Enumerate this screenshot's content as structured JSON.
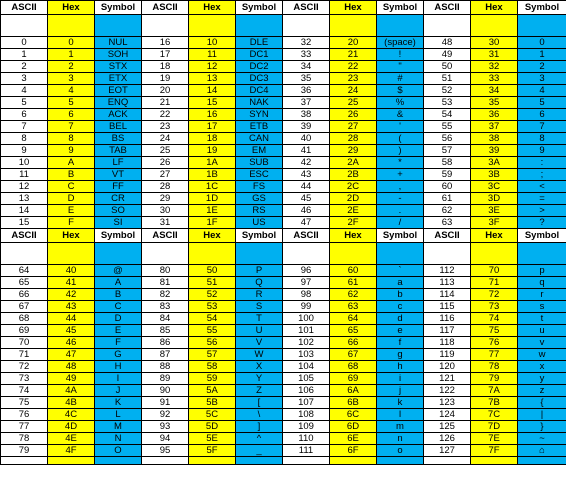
{
  "headers": {
    "ascii": "ASCII",
    "hex": "Hex",
    "symbol": "Symbol"
  },
  "top": [
    [
      [
        "0",
        "0",
        "NUL"
      ],
      [
        "16",
        "10",
        "DLE"
      ],
      [
        "32",
        "20",
        "(space)"
      ],
      [
        "48",
        "30",
        "0"
      ]
    ],
    [
      [
        "1",
        "1",
        "SOH"
      ],
      [
        "17",
        "11",
        "DC1"
      ],
      [
        "33",
        "21",
        "!"
      ],
      [
        "49",
        "31",
        "1"
      ]
    ],
    [
      [
        "2",
        "2",
        "STX"
      ],
      [
        "18",
        "12",
        "DC2"
      ],
      [
        "34",
        "22",
        "\""
      ],
      [
        "50",
        "32",
        "2"
      ]
    ],
    [
      [
        "3",
        "3",
        "ETX"
      ],
      [
        "19",
        "13",
        "DC3"
      ],
      [
        "35",
        "23",
        "#"
      ],
      [
        "51",
        "33",
        "3"
      ]
    ],
    [
      [
        "4",
        "4",
        "EOT"
      ],
      [
        "20",
        "14",
        "DC4"
      ],
      [
        "36",
        "24",
        "$"
      ],
      [
        "52",
        "34",
        "4"
      ]
    ],
    [
      [
        "5",
        "5",
        "ENQ"
      ],
      [
        "21",
        "15",
        "NAK"
      ],
      [
        "37",
        "25",
        "%"
      ],
      [
        "53",
        "35",
        "5"
      ]
    ],
    [
      [
        "6",
        "6",
        "ACK"
      ],
      [
        "22",
        "16",
        "SYN"
      ],
      [
        "38",
        "26",
        "&"
      ],
      [
        "54",
        "36",
        "6"
      ]
    ],
    [
      [
        "7",
        "7",
        "BEL"
      ],
      [
        "23",
        "17",
        "ETB"
      ],
      [
        "39",
        "27",
        "'"
      ],
      [
        "55",
        "37",
        "7"
      ]
    ],
    [
      [
        "8",
        "8",
        "BS"
      ],
      [
        "24",
        "18",
        "CAN"
      ],
      [
        "40",
        "28",
        "("
      ],
      [
        "56",
        "38",
        "8"
      ]
    ],
    [
      [
        "9",
        "9",
        "TAB"
      ],
      [
        "25",
        "19",
        "EM"
      ],
      [
        "41",
        "29",
        ")"
      ],
      [
        "57",
        "39",
        "9"
      ]
    ],
    [
      [
        "10",
        "A",
        "LF"
      ],
      [
        "26",
        "1A",
        "SUB"
      ],
      [
        "42",
        "2A",
        "*"
      ],
      [
        "58",
        "3A",
        ":"
      ]
    ],
    [
      [
        "11",
        "B",
        "VT"
      ],
      [
        "27",
        "1B",
        "ESC"
      ],
      [
        "43",
        "2B",
        "+"
      ],
      [
        "59",
        "3B",
        ";"
      ]
    ],
    [
      [
        "12",
        "C",
        "FF"
      ],
      [
        "28",
        "1C",
        "FS"
      ],
      [
        "44",
        "2C",
        ","
      ],
      [
        "60",
        "3C",
        "<"
      ]
    ],
    [
      [
        "13",
        "D",
        "CR"
      ],
      [
        "29",
        "1D",
        "GS"
      ],
      [
        "45",
        "2D",
        "-"
      ],
      [
        "61",
        "3D",
        "="
      ]
    ],
    [
      [
        "14",
        "E",
        "SO"
      ],
      [
        "30",
        "1E",
        "RS"
      ],
      [
        "46",
        "2E",
        "."
      ],
      [
        "62",
        "3E",
        ">"
      ]
    ],
    [
      [
        "15",
        "F",
        "SI"
      ],
      [
        "31",
        "1F",
        "US"
      ],
      [
        "47",
        "2F",
        "/"
      ],
      [
        "63",
        "3F",
        "?"
      ]
    ]
  ],
  "bottom": [
    [
      [
        "64",
        "40",
        "@"
      ],
      [
        "80",
        "50",
        "P"
      ],
      [
        "96",
        "60",
        "`"
      ],
      [
        "112",
        "70",
        "p"
      ]
    ],
    [
      [
        "65",
        "41",
        "A"
      ],
      [
        "81",
        "51",
        "Q"
      ],
      [
        "97",
        "61",
        "a"
      ],
      [
        "113",
        "71",
        "q"
      ]
    ],
    [
      [
        "66",
        "42",
        "B"
      ],
      [
        "82",
        "52",
        "R"
      ],
      [
        "98",
        "62",
        "b"
      ],
      [
        "114",
        "72",
        "r"
      ]
    ],
    [
      [
        "67",
        "43",
        "C"
      ],
      [
        "83",
        "53",
        "S"
      ],
      [
        "99",
        "63",
        "c"
      ],
      [
        "115",
        "73",
        "s"
      ]
    ],
    [
      [
        "68",
        "44",
        "D"
      ],
      [
        "84",
        "54",
        "T"
      ],
      [
        "100",
        "64",
        "d"
      ],
      [
        "116",
        "74",
        "t"
      ]
    ],
    [
      [
        "69",
        "45",
        "E"
      ],
      [
        "85",
        "55",
        "U"
      ],
      [
        "101",
        "65",
        "e"
      ],
      [
        "117",
        "75",
        "u"
      ]
    ],
    [
      [
        "70",
        "46",
        "F"
      ],
      [
        "86",
        "56",
        "V"
      ],
      [
        "102",
        "66",
        "f"
      ],
      [
        "118",
        "76",
        "v"
      ]
    ],
    [
      [
        "71",
        "47",
        "G"
      ],
      [
        "87",
        "57",
        "W"
      ],
      [
        "103",
        "67",
        "g"
      ],
      [
        "119",
        "77",
        "w"
      ]
    ],
    [
      [
        "72",
        "48",
        "H"
      ],
      [
        "88",
        "58",
        "X"
      ],
      [
        "104",
        "68",
        "h"
      ],
      [
        "120",
        "78",
        "x"
      ]
    ],
    [
      [
        "73",
        "49",
        "I"
      ],
      [
        "89",
        "59",
        "Y"
      ],
      [
        "105",
        "69",
        "i"
      ],
      [
        "121",
        "79",
        "y"
      ]
    ],
    [
      [
        "74",
        "4A",
        "J"
      ],
      [
        "90",
        "5A",
        "Z"
      ],
      [
        "106",
        "6A",
        "j"
      ],
      [
        "122",
        "7A",
        "z"
      ]
    ],
    [
      [
        "75",
        "4B",
        "K"
      ],
      [
        "91",
        "5B",
        "["
      ],
      [
        "107",
        "6B",
        "k"
      ],
      [
        "123",
        "7B",
        "{"
      ]
    ],
    [
      [
        "76",
        "4C",
        "L"
      ],
      [
        "92",
        "5C",
        "\\"
      ],
      [
        "108",
        "6C",
        "l"
      ],
      [
        "124",
        "7C",
        "|"
      ]
    ],
    [
      [
        "77",
        "4D",
        "M"
      ],
      [
        "93",
        "5D",
        "]"
      ],
      [
        "109",
        "6D",
        "m"
      ],
      [
        "125",
        "7D",
        "}"
      ]
    ],
    [
      [
        "78",
        "4E",
        "N"
      ],
      [
        "94",
        "5E",
        "^"
      ],
      [
        "110",
        "6E",
        "n"
      ],
      [
        "126",
        "7E",
        "~"
      ]
    ],
    [
      [
        "79",
        "4F",
        "O"
      ],
      [
        "95",
        "5F",
        "_"
      ],
      [
        "111",
        "6F",
        "o"
      ],
      [
        "127",
        "7F",
        "⌂"
      ]
    ]
  ]
}
